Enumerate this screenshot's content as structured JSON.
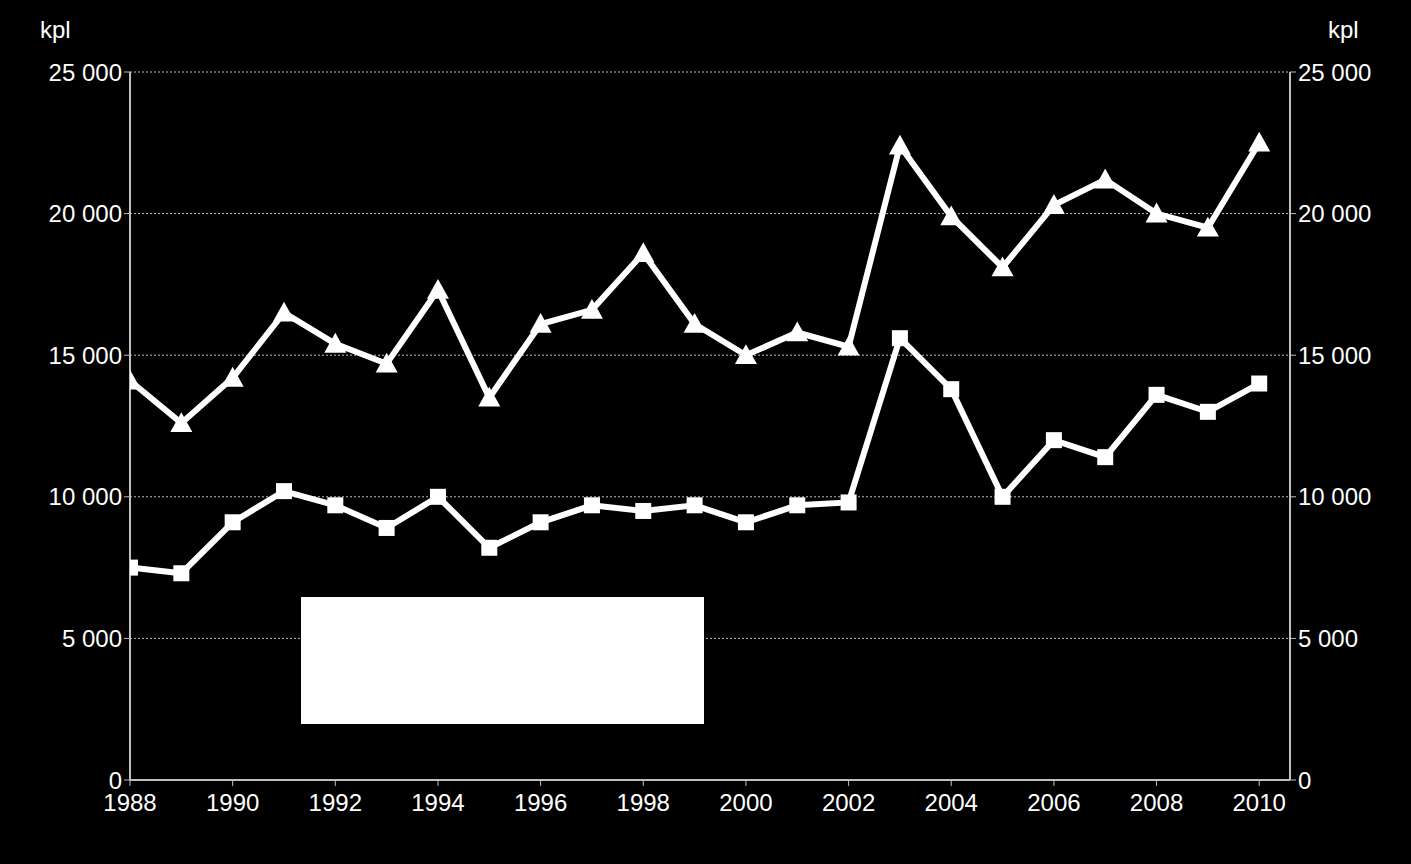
{
  "chart_data": {
    "type": "line",
    "ylabel": "kpl",
    "y2label": "kpl",
    "x": [
      1988,
      1989,
      1990,
      1991,
      1992,
      1993,
      1994,
      1995,
      1996,
      1997,
      1998,
      1999,
      2000,
      2001,
      2002,
      2003,
      2004,
      2005,
      2006,
      2007,
      2008,
      2009,
      2010
    ],
    "xlim": [
      1988,
      2010.6
    ],
    "xticks": [
      1988,
      1990,
      1992,
      1994,
      1996,
      1998,
      2000,
      2002,
      2004,
      2006,
      2008,
      2010
    ],
    "ylim": [
      0,
      25000
    ],
    "yticks": [
      0,
      {
        "value": 5000,
        "label": "5 000"
      },
      {
        "value": 10000,
        "label": "10 000"
      },
      {
        "value": 15000,
        "label": "15 000"
      },
      {
        "value": 20000,
        "label": "20 000"
      },
      {
        "value": 25000,
        "label": "25 000"
      }
    ],
    "y2lim": [
      0,
      25000
    ],
    "y2ticks": [
      0,
      {
        "value": 5000,
        "label": "5 000"
      },
      {
        "value": 10000,
        "label": "10 000"
      },
      {
        "value": 15000,
        "label": "15 000"
      },
      {
        "value": 20000,
        "label": "20 000"
      },
      {
        "value": 25000,
        "label": "25 000"
      }
    ],
    "grid": true,
    "series": [
      {
        "color": "#ffffff",
        "marker": "triangle",
        "values": [
          14100,
          12600,
          14200,
          16500,
          15400,
          14700,
          17300,
          13500,
          16100,
          16600,
          18600,
          16100,
          15000,
          15800,
          15300,
          22400,
          19900,
          18100,
          20300,
          21200,
          20000,
          19500,
          22500
        ]
      },
      {
        "color": "#ffffff",
        "marker": "square",
        "values": [
          7500,
          7300,
          9100,
          10200,
          9700,
          8900,
          10000,
          8200,
          9100,
          9700,
          9500,
          9700,
          9100,
          9700,
          9800,
          15600,
          13800,
          10000,
          12000,
          11400,
          13600,
          13000,
          14000
        ]
      }
    ]
  }
}
